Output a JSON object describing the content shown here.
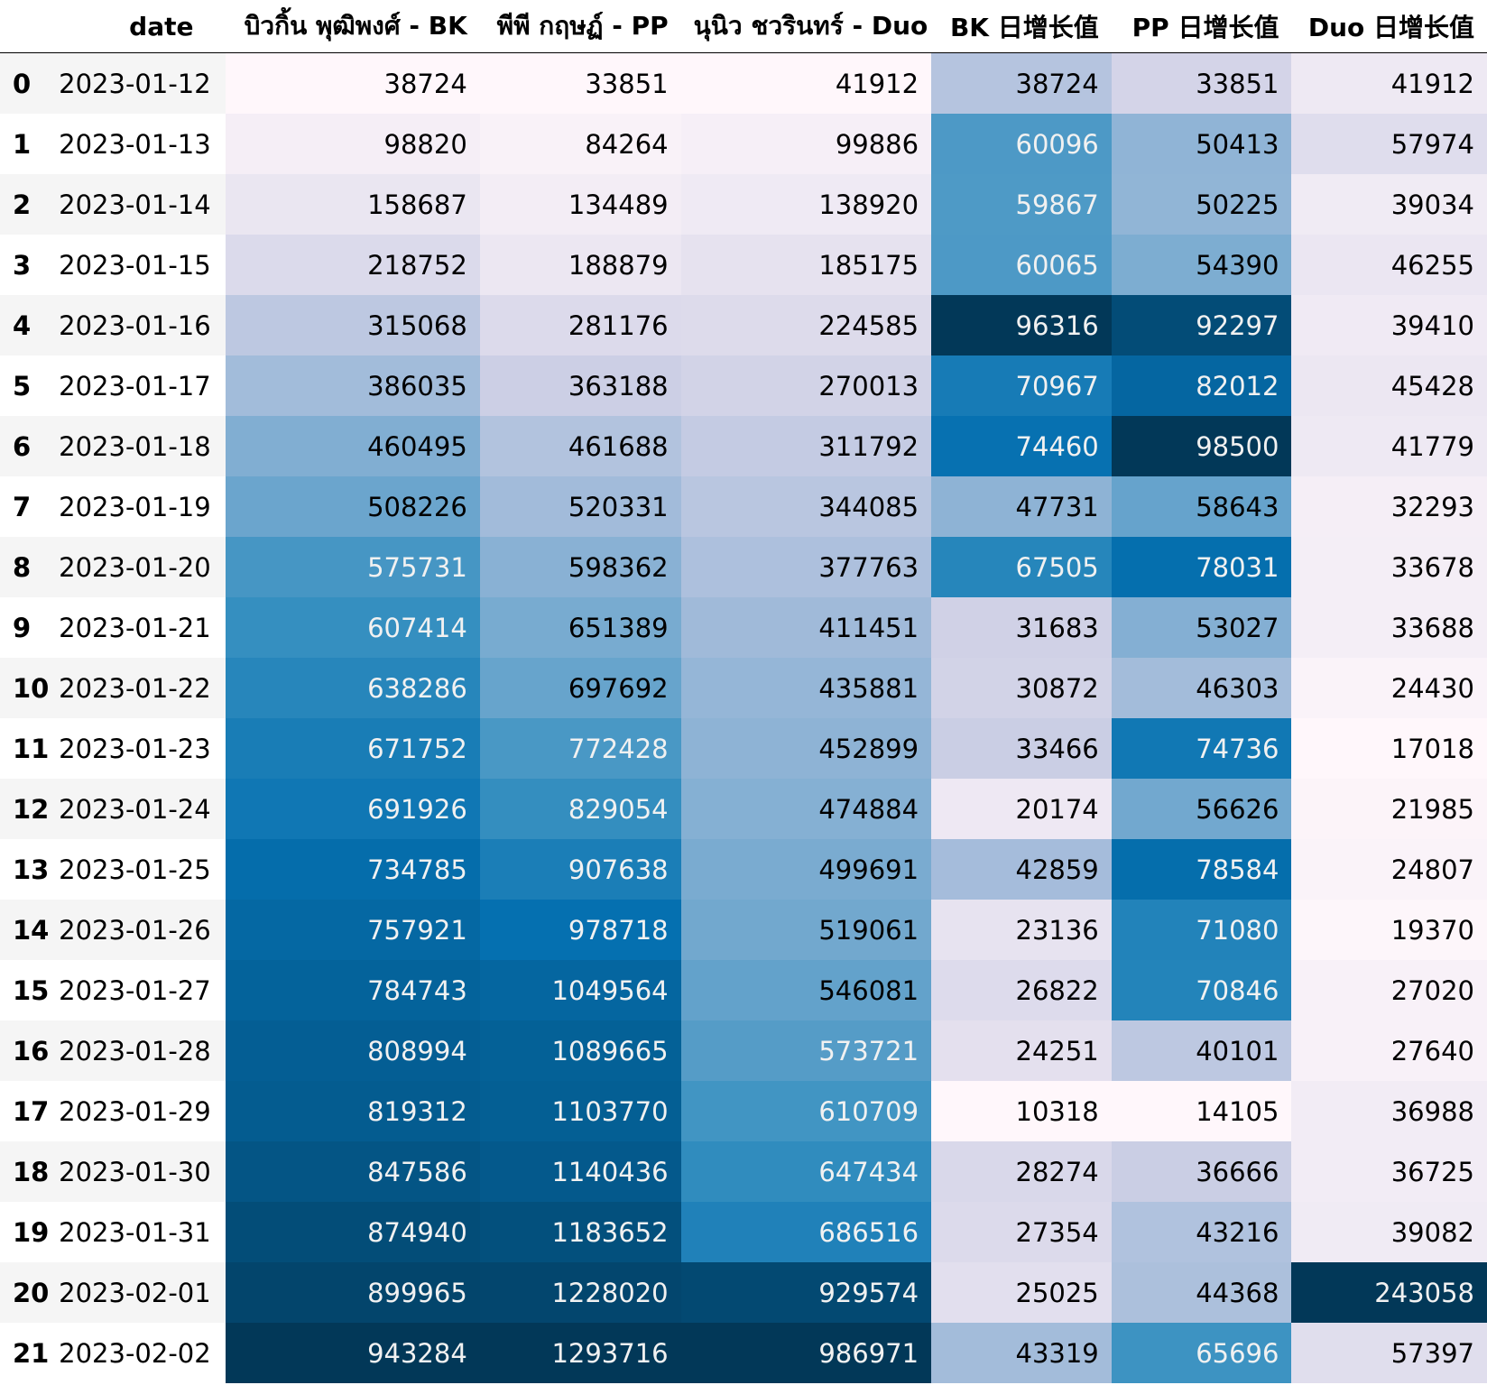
{
  "chart_data": {
    "type": "table",
    "colormap": "PuBu",
    "columns": [
      "",
      "date",
      "บิวกิ้น พุฒิพงศ์ - BK",
      "พีพี กฤษฏ์ - PP",
      "นุนิว ชวรินทร์ - Duo",
      "BK 日增长值",
      "PP 日增长值",
      "Duo 日增长值"
    ],
    "rows": [
      {
        "index": "0",
        "date": "2023-01-12",
        "values": [
          38724,
          33851,
          41912,
          38724,
          33851,
          41912
        ]
      },
      {
        "index": "1",
        "date": "2023-01-13",
        "values": [
          98820,
          84264,
          99886,
          60096,
          50413,
          57974
        ]
      },
      {
        "index": "2",
        "date": "2023-01-14",
        "values": [
          158687,
          134489,
          138920,
          59867,
          50225,
          39034
        ]
      },
      {
        "index": "3",
        "date": "2023-01-15",
        "values": [
          218752,
          188879,
          185175,
          60065,
          54390,
          46255
        ]
      },
      {
        "index": "4",
        "date": "2023-01-16",
        "values": [
          315068,
          281176,
          224585,
          96316,
          92297,
          39410
        ]
      },
      {
        "index": "5",
        "date": "2023-01-17",
        "values": [
          386035,
          363188,
          270013,
          70967,
          82012,
          45428
        ]
      },
      {
        "index": "6",
        "date": "2023-01-18",
        "values": [
          460495,
          461688,
          311792,
          74460,
          98500,
          41779
        ]
      },
      {
        "index": "7",
        "date": "2023-01-19",
        "values": [
          508226,
          520331,
          344085,
          47731,
          58643,
          32293
        ]
      },
      {
        "index": "8",
        "date": "2023-01-20",
        "values": [
          575731,
          598362,
          377763,
          67505,
          78031,
          33678
        ]
      },
      {
        "index": "9",
        "date": "2023-01-21",
        "values": [
          607414,
          651389,
          411451,
          31683,
          53027,
          33688
        ]
      },
      {
        "index": "10",
        "date": "2023-01-22",
        "values": [
          638286,
          697692,
          435881,
          30872,
          46303,
          24430
        ]
      },
      {
        "index": "11",
        "date": "2023-01-23",
        "values": [
          671752,
          772428,
          452899,
          33466,
          74736,
          17018
        ]
      },
      {
        "index": "12",
        "date": "2023-01-24",
        "values": [
          691926,
          829054,
          474884,
          20174,
          56626,
          21985
        ]
      },
      {
        "index": "13",
        "date": "2023-01-25",
        "values": [
          734785,
          907638,
          499691,
          42859,
          78584,
          24807
        ]
      },
      {
        "index": "14",
        "date": "2023-01-26",
        "values": [
          757921,
          978718,
          519061,
          23136,
          71080,
          19370
        ]
      },
      {
        "index": "15",
        "date": "2023-01-27",
        "values": [
          784743,
          1049564,
          546081,
          26822,
          70846,
          27020
        ]
      },
      {
        "index": "16",
        "date": "2023-01-28",
        "values": [
          808994,
          1089665,
          573721,
          24251,
          40101,
          27640
        ]
      },
      {
        "index": "17",
        "date": "2023-01-29",
        "values": [
          819312,
          1103770,
          610709,
          10318,
          14105,
          36988
        ]
      },
      {
        "index": "18",
        "date": "2023-01-30",
        "values": [
          847586,
          1140436,
          647434,
          28274,
          36666,
          36725
        ]
      },
      {
        "index": "19",
        "date": "2023-01-31",
        "values": [
          874940,
          1183652,
          686516,
          27354,
          43216,
          39082
        ]
      },
      {
        "index": "20",
        "date": "2023-02-01",
        "values": [
          899965,
          1228020,
          929574,
          25025,
          44368,
          243058
        ]
      },
      {
        "index": "21",
        "date": "2023-02-02",
        "values": [
          943284,
          1293716,
          986971,
          43319,
          65696,
          57397
        ]
      }
    ]
  }
}
